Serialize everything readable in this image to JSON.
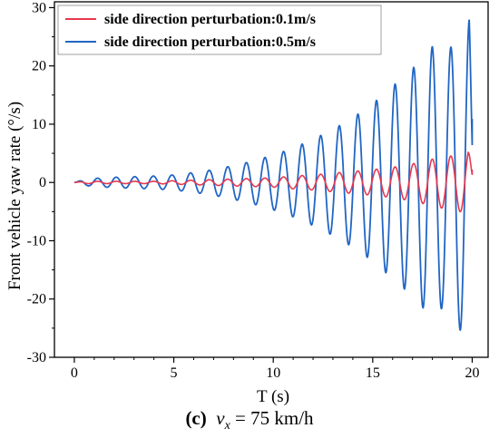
{
  "chart_data": {
    "type": "line",
    "xlabel": "T (s)",
    "ylabel": "Front vehicle yaw rate (°/s)",
    "xlim": [
      -1,
      20.8
    ],
    "ylim": [
      -30,
      31
    ],
    "xticks": [
      0,
      5,
      10,
      15,
      20
    ],
    "yticks": [
      -30,
      -20,
      -10,
      0,
      10,
      20,
      30
    ],
    "legend_position": "top-left",
    "grid": false,
    "series": [
      {
        "name": "side direction perturbation:0.1m/s",
        "color": "#e8384f",
        "x": [
          0,
          0.5,
          1,
          2,
          3,
          4,
          5,
          6,
          7,
          8,
          9,
          10,
          11,
          12,
          13,
          14,
          15,
          16,
          17,
          18,
          18.7,
          19.1,
          19.5,
          19.8,
          20
        ],
        "values": [
          0,
          0.2,
          0.2,
          0.2,
          0.2,
          0.2,
          0.3,
          0.4,
          0.5,
          0.6,
          0.7,
          0.8,
          1.1,
          1.3,
          1.6,
          1.9,
          2.2,
          2.6,
          3.2,
          4.0,
          4.6,
          -4.5,
          -5.2,
          5.6,
          2.2
        ]
      },
      {
        "name": "side direction perturbation:0.5m/s",
        "color": "#2166c4",
        "x": [
          0,
          0.5,
          1,
          2,
          3,
          4,
          5,
          6,
          7,
          8,
          9,
          10,
          11,
          12,
          13,
          14,
          15,
          16,
          17,
          18,
          18.5,
          19,
          19.5,
          19.85,
          20
        ],
        "values": [
          0,
          0.5,
          0.7,
          0.9,
          1.0,
          1.1,
          1.3,
          1.7,
          2.2,
          2.9,
          3.7,
          4.7,
          5.9,
          7.4,
          9.1,
          11.1,
          13.5,
          16.5,
          19.5,
          23.3,
          -21.5,
          23.5,
          -25.8,
          28.0,
          10.9
        ]
      }
    ]
  },
  "caption": {
    "prefix": "(c)",
    "var": "v",
    "sub": "x",
    "rest": " = 75 km/h"
  }
}
